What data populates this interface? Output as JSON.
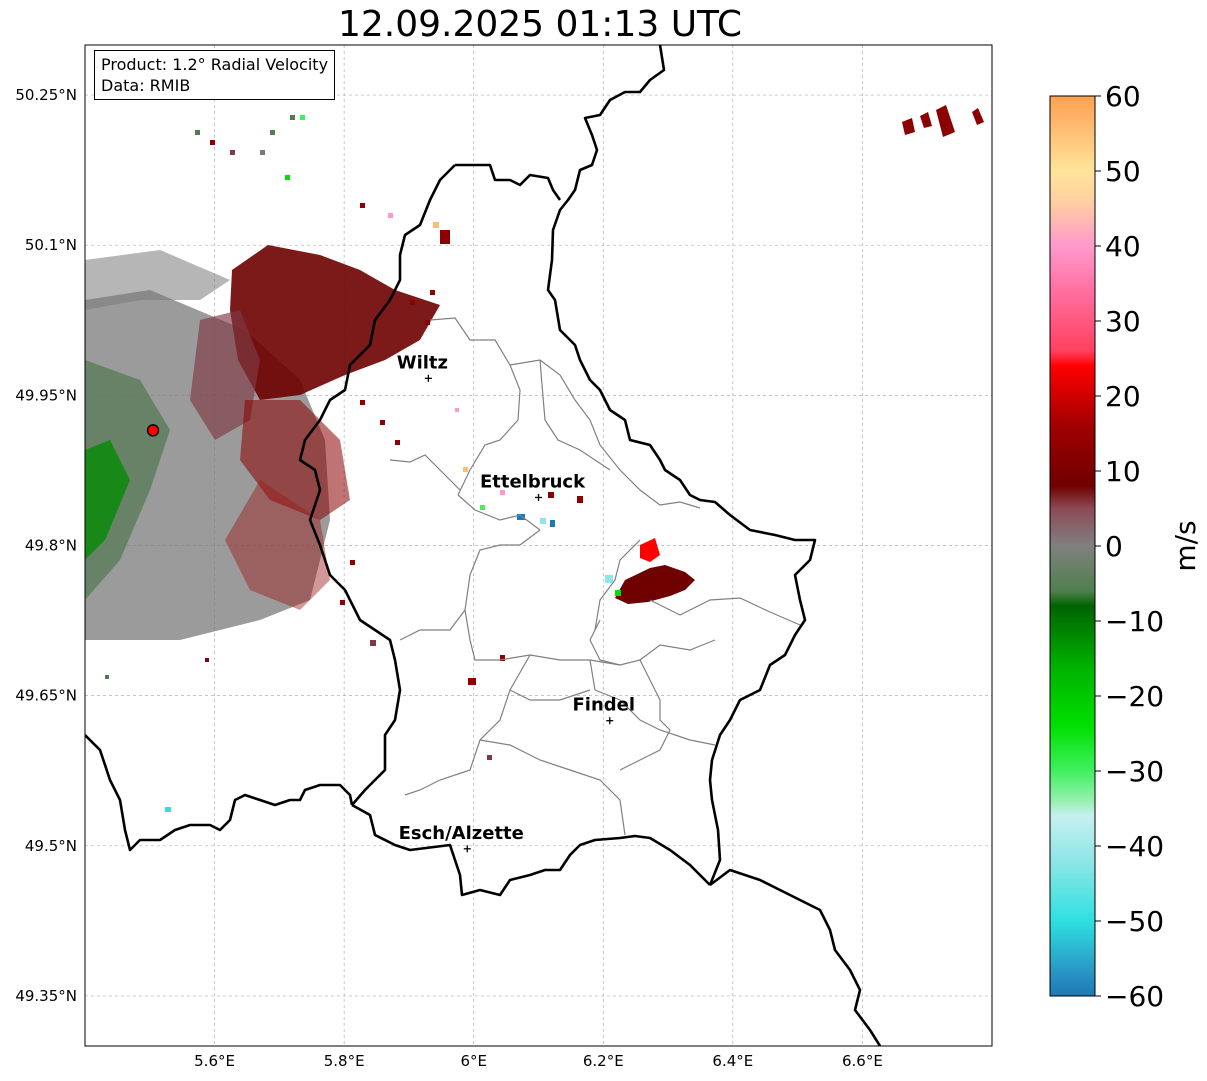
{
  "title": "12.09.2025 01:13 UTC",
  "info": {
    "product": "Product: 1.2° Radial Velocity",
    "data": "Data: RMIB"
  },
  "map": {
    "lon_range": [
      5.4,
      6.8
    ],
    "lat_range": [
      49.3,
      50.3
    ],
    "lon_ticks": [
      {
        "value": 5.6,
        "label": "5.6°E"
      },
      {
        "value": 5.8,
        "label": "5.8°E"
      },
      {
        "value": 6.0,
        "label": "6°E"
      },
      {
        "value": 6.2,
        "label": "6.2°E"
      },
      {
        "value": 6.4,
        "label": "6.4°E"
      },
      {
        "value": 6.6,
        "label": "6.6°E"
      }
    ],
    "lat_ticks": [
      {
        "value": 50.25,
        "label": "50.25°N"
      },
      {
        "value": 50.1,
        "label": "50.1°N"
      },
      {
        "value": 49.95,
        "label": "49.95°N"
      },
      {
        "value": 49.8,
        "label": "49.8°N"
      },
      {
        "value": 49.65,
        "label": "49.65°N"
      },
      {
        "value": 49.5,
        "label": "49.5°N"
      },
      {
        "value": 49.35,
        "label": "49.35°N"
      }
    ],
    "grid": true,
    "radar_site": {
      "lon": 5.505,
      "lat": 49.915,
      "color": "#ff0000"
    },
    "cities": [
      {
        "name": "Wiltz",
        "lon": 5.93,
        "lat": 49.967
      },
      {
        "name": "Ettelbruck",
        "lon": 6.1,
        "lat": 49.848
      },
      {
        "name": "Findel",
        "lon": 6.21,
        "lat": 49.625
      },
      {
        "name": "Esch/Alzette",
        "lon": 5.99,
        "lat": 49.497
      }
    ]
  },
  "colorbar": {
    "label": "m/s",
    "min": -60,
    "max": 60,
    "ticks": [
      {
        "value": 60,
        "label": "60"
      },
      {
        "value": 50,
        "label": "50"
      },
      {
        "value": 40,
        "label": "40"
      },
      {
        "value": 30,
        "label": "30"
      },
      {
        "value": 20,
        "label": "20"
      },
      {
        "value": 10,
        "label": "10"
      },
      {
        "value": 0,
        "label": "0"
      },
      {
        "value": -10,
        "label": "−10"
      },
      {
        "value": -20,
        "label": "−20"
      },
      {
        "value": -30,
        "label": "−30"
      },
      {
        "value": -40,
        "label": "−40"
      },
      {
        "value": -50,
        "label": "−50"
      },
      {
        "value": -60,
        "label": "−60"
      }
    ],
    "stops": [
      {
        "v": -60,
        "c": "#1f77b4"
      },
      {
        "v": -56,
        "c": "#2a9ec8"
      },
      {
        "v": -50,
        "c": "#2ee0e0"
      },
      {
        "v": -42,
        "c": "#8ee6e6"
      },
      {
        "v": -36,
        "c": "#c6eff0"
      },
      {
        "v": -34,
        "c": "#98f0b0"
      },
      {
        "v": -30,
        "c": "#40f060"
      },
      {
        "v": -24,
        "c": "#00e000"
      },
      {
        "v": -16,
        "c": "#00b000"
      },
      {
        "v": -8,
        "c": "#006400"
      },
      {
        "v": -6,
        "c": "#4f7f4f"
      },
      {
        "v": 0,
        "c": "#808080"
      },
      {
        "v": 5,
        "c": "#8b4a55"
      },
      {
        "v": 8,
        "c": "#700000"
      },
      {
        "v": 16,
        "c": "#a00000"
      },
      {
        "v": 24,
        "c": "#ff0000"
      },
      {
        "v": 26,
        "c": "#ff4060"
      },
      {
        "v": 34,
        "c": "#ff70a0"
      },
      {
        "v": 40,
        "c": "#ff99cc"
      },
      {
        "v": 46,
        "c": "#ffd0a0"
      },
      {
        "v": 50,
        "c": "#ffe49a"
      },
      {
        "v": 56,
        "c": "#ffbb70"
      },
      {
        "v": 60,
        "c": "#ffa050"
      }
    ]
  }
}
